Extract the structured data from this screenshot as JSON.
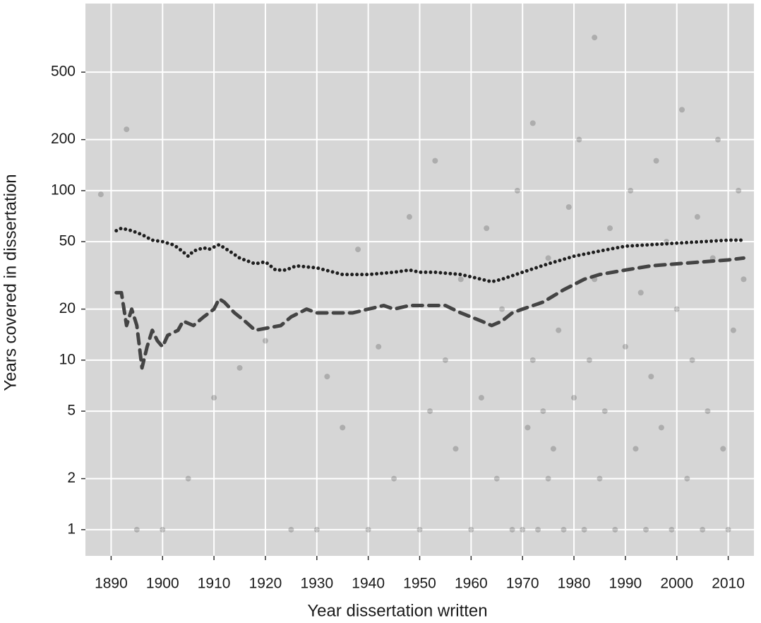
{
  "chart_data": {
    "type": "scatter",
    "x_label": "Year dissertation written",
    "y_label": "Years covered in dissertation",
    "xlim": [
      1885,
      2015
    ],
    "ylim": [
      0.7,
      1270
    ],
    "ylog": true,
    "grid": true,
    "background": "#d6d6d6",
    "xticks": [
      1890,
      1900,
      1910,
      1920,
      1930,
      1940,
      1950,
      1960,
      1970,
      1980,
      1990,
      2000,
      2010
    ],
    "yticks": [
      1,
      2,
      5,
      10,
      20,
      50,
      100,
      200,
      500
    ],
    "series": [
      {
        "mode": "points",
        "color": "#333333",
        "x": [
          1895,
          1900,
          1905,
          1910,
          1915,
          1920,
          1925,
          1930,
          1932,
          1935,
          1938,
          1940,
          1942,
          1945,
          1948,
          1950,
          1952,
          1953,
          1955,
          1957,
          1958,
          1960,
          1962,
          1963,
          1965,
          1966,
          1968,
          1969,
          1970,
          1971,
          1972,
          1972,
          1973,
          1974,
          1975,
          1975,
          1976,
          1977,
          1978,
          1979,
          1980,
          1981,
          1982,
          1983,
          1984,
          1985,
          1986,
          1987,
          1988,
          1990,
          1991,
          1992,
          1993,
          1994,
          1995,
          1996,
          1997,
          1998,
          1999,
          2000,
          2001,
          2002,
          2003,
          2004,
          2005,
          2006,
          2007,
          2008,
          2009,
          2010,
          2011,
          2012,
          2013,
          1893,
          1888,
          1984
        ],
        "values": [
          1,
          1,
          2,
          6,
          9,
          13,
          1,
          1,
          8,
          4,
          45,
          1,
          12,
          2,
          70,
          1,
          5,
          150,
          10,
          3,
          30,
          1,
          6,
          60,
          2,
          20,
          1,
          100,
          1,
          4,
          10,
          250,
          1,
          5,
          40,
          2,
          3,
          15,
          1,
          80,
          6,
          200,
          1,
          10,
          30,
          2,
          5,
          60,
          1,
          12,
          100,
          3,
          25,
          1,
          8,
          150,
          4,
          50,
          1,
          20,
          300,
          2,
          10,
          70,
          1,
          5,
          40,
          200,
          3,
          1,
          15,
          100,
          30,
          230,
          95,
          800
        ]
      },
      {
        "mode": "dotted",
        "color": "#1e1e1e",
        "x": [
          1891,
          1892,
          1894,
          1896,
          1898,
          1900,
          1902,
          1903,
          1905,
          1906,
          1908,
          1909,
          1911,
          1913,
          1915,
          1918,
          1920,
          1922,
          1924,
          1926,
          1930,
          1935,
          1940,
          1945,
          1948,
          1950,
          1953,
          1958,
          1962,
          1964,
          1966,
          1970,
          1975,
          1980,
          1985,
          1990,
          1995,
          2000,
          2005,
          2010,
          2013
        ],
        "values": [
          58,
          60,
          58,
          55,
          51,
          50,
          48,
          46,
          41,
          44,
          46,
          45,
          48,
          44,
          40,
          37,
          38,
          34,
          34,
          36,
          35,
          32,
          32,
          33,
          34,
          33,
          33,
          32,
          30,
          29,
          30,
          33,
          37,
          41,
          44,
          47,
          48,
          49,
          50,
          51,
          51
        ]
      },
      {
        "mode": "dashed",
        "color": "#444444",
        "x": [
          1891,
          1892,
          1893,
          1894,
          1895,
          1896,
          1897,
          1898,
          1899,
          1900,
          1901,
          1903,
          1904,
          1906,
          1908,
          1910,
          1911,
          1912,
          1914,
          1916,
          1918,
          1923,
          1925,
          1928,
          1930,
          1937,
          1940,
          1943,
          1945,
          1948,
          1955,
          1958,
          1962,
          1964,
          1966,
          1968,
          1970,
          1974,
          1978,
          1982,
          1985,
          1990,
          1995,
          2000,
          2005,
          2010,
          2013
        ],
        "values": [
          25,
          25,
          16,
          20,
          16,
          9,
          12,
          15,
          13,
          12,
          14,
          15,
          17,
          16,
          18,
          20,
          23,
          22,
          19,
          17,
          15,
          16,
          18,
          20,
          19,
          19,
          20,
          21,
          20,
          21,
          21,
          19,
          17,
          16,
          17,
          19,
          20,
          22,
          26,
          30,
          32,
          34,
          36,
          37,
          38,
          39,
          40
        ]
      }
    ]
  }
}
